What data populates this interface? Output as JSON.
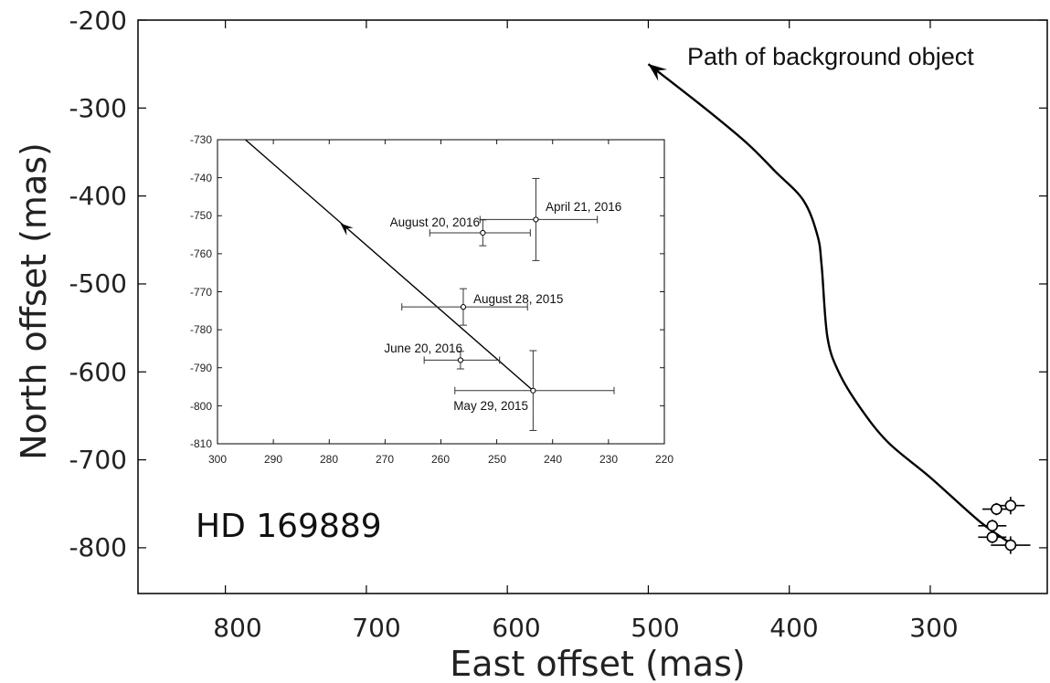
{
  "chart_data": [
    {
      "type": "line",
      "xlabel": "East offset (mas)",
      "ylabel": "North offset (mas)",
      "xlim": [
        862,
        217
      ],
      "ylim": [
        -852,
        -200
      ],
      "x_ticks": [
        800,
        700,
        600,
        500,
        400,
        300
      ],
      "y_ticks": [
        -200,
        -300,
        -400,
        -500,
        -600,
        -700,
        -800
      ],
      "x_tick_labels": [
        "800",
        "700",
        "600",
        "500",
        "400",
        "300"
      ],
      "y_tick_labels": [
        "-200",
        "-300",
        "-400",
        "-500",
        "-600",
        "-700",
        "-800"
      ],
      "annotations": [
        "Path of background object",
        "HD 169889"
      ],
      "series": [
        {
          "style": "line-with-arrow",
          "x": [
            243,
            265,
            300,
            330,
            350,
            365,
            373,
            377,
            380,
            390,
            410,
            430,
            460,
            500
          ],
          "y": [
            -795,
            -770,
            -720,
            -680,
            -640,
            -600,
            -560,
            -480,
            -445,
            -405,
            -372,
            -340,
            -300,
            -250
          ]
        },
        {
          "style": "points-with-errorbars",
          "x": [
            243,
            256,
            256,
            253,
            243
          ],
          "y": [
            -797,
            -788,
            -775,
            -756,
            -752
          ],
          "x_err": [
            14,
            10,
            10,
            10,
            10
          ],
          "y_err": [
            10,
            7,
            7,
            7,
            10
          ]
        }
      ]
    },
    {
      "type": "scatter",
      "inset": true,
      "xlim": [
        300,
        220
      ],
      "ylim": [
        -810,
        -730
      ],
      "x_ticks": [
        300,
        290,
        280,
        270,
        260,
        250,
        240,
        230,
        220
      ],
      "y_ticks": [
        -730,
        -740,
        -750,
        -760,
        -770,
        -780,
        -790,
        -800,
        -810
      ],
      "x_tick_labels": [
        "300",
        "290",
        "280",
        "270",
        "260",
        "250",
        "240",
        "230",
        "220"
      ],
      "y_tick_labels": [
        "-730",
        "-740",
        "-750",
        "-760",
        "-770",
        "-780",
        "-790",
        "-800",
        "-810"
      ],
      "track": {
        "x": [
          243.5,
          295
        ],
        "y": [
          -796,
          -730
        ],
        "arrow_at": [
          278,
          -752
        ]
      },
      "points": [
        {
          "label": "May 29, 2015",
          "x": 243.5,
          "y": -796,
          "x_err_low": 14,
          "x_err_high": 14.5,
          "y_err": 10.5
        },
        {
          "label": "August 28, 2015",
          "x": 256,
          "y": -774,
          "x_err_low": 11,
          "x_err_high": 11.5,
          "y_err": 4.8
        },
        {
          "label": "April 21, 2016",
          "x": 243,
          "y": -751,
          "x_err_low": 10,
          "x_err_high": 11,
          "y_err": 10.8
        },
        {
          "label": "June 20, 2016",
          "x": 256.5,
          "y": -788,
          "x_err_low": 6.5,
          "x_err_high": 7,
          "y_err": 2.3
        },
        {
          "label": "August 20, 2016",
          "x": 252.5,
          "y": -754.5,
          "x_err_low": 9.5,
          "x_err_high": 8.5,
          "y_err": 3.4
        }
      ]
    }
  ]
}
